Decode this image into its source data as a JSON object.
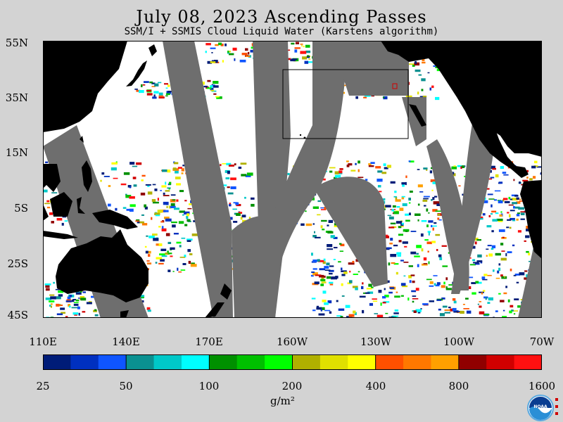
{
  "title": "July 08, 2023  Ascending Passes",
  "subtitle": "SSM/I + SSMIS Cloud Liquid Water (Karstens algorithm)",
  "lat_labels": [
    "55N",
    "35N",
    "15N",
    "5S",
    "25S",
    "45S"
  ],
  "lon_labels": [
    "110E",
    "140E",
    "170E",
    "160W",
    "130W",
    "100W",
    "70W"
  ],
  "colorbar": {
    "colors": [
      "#001c78",
      "#0030c0",
      "#0f55ff",
      "#0a9090",
      "#00c8c8",
      "#00ffff",
      "#009000",
      "#00c000",
      "#00ff00",
      "#b0b000",
      "#e0e000",
      "#ffff00",
      "#ff5000",
      "#ff7800",
      "#ffa000",
      "#900000",
      "#d00000",
      "#ff1010"
    ],
    "labels": [
      "25",
      "50",
      "100",
      "200",
      "400",
      "800",
      "1600"
    ]
  },
  "units": "g/m²",
  "logo_text": "NOAA",
  "colors": {
    "background": "#d3d3d3",
    "land": "#000000",
    "no_data": "#6e6e6e",
    "clear_ocean": "#ffffff"
  }
}
